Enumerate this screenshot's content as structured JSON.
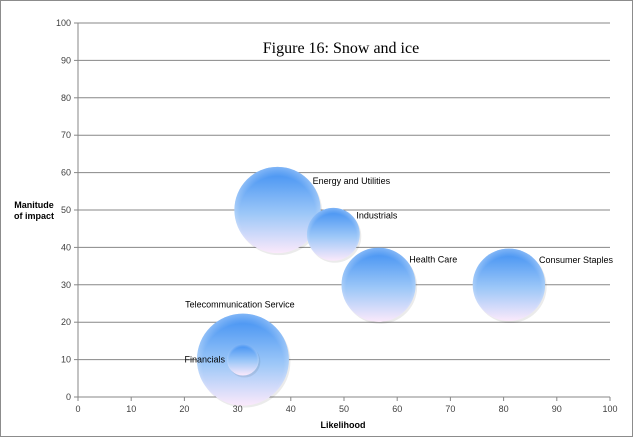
{
  "chart_data": {
    "type": "bubble",
    "title": "Figure 16: Snow and ice",
    "xlabel": "Likelihood",
    "ylabel": [
      "Manitude",
      "of impact"
    ],
    "xlim": [
      0,
      100
    ],
    "ylim": [
      0,
      100
    ],
    "x_ticks": [
      0,
      10,
      20,
      30,
      40,
      50,
      60,
      70,
      80,
      90,
      100
    ],
    "y_ticks": [
      0,
      10,
      20,
      30,
      40,
      50,
      60,
      70,
      80,
      90,
      100
    ],
    "grid": "horizontal",
    "legend": "none",
    "points": [
      {
        "label": "Telecommunication Service",
        "x": 31,
        "y": 10,
        "size": 100
      },
      {
        "label": "Energy and Utilities",
        "x": 37.5,
        "y": 50,
        "size": 88
      },
      {
        "label": "Health Care",
        "x": 56.5,
        "y": 30,
        "size": 65
      },
      {
        "label": "Consumer Staples",
        "x": 81,
        "y": 30,
        "size": 62
      },
      {
        "label": "Industrials",
        "x": 48,
        "y": 43.5,
        "size": 33
      },
      {
        "label": "Financials",
        "x": 31,
        "y": 10,
        "size": 12
      }
    ],
    "colors": {
      "bubble_top": "#3d8ef2",
      "bubble_bottom": "#fbe9fb",
      "grid": "#878787"
    }
  }
}
